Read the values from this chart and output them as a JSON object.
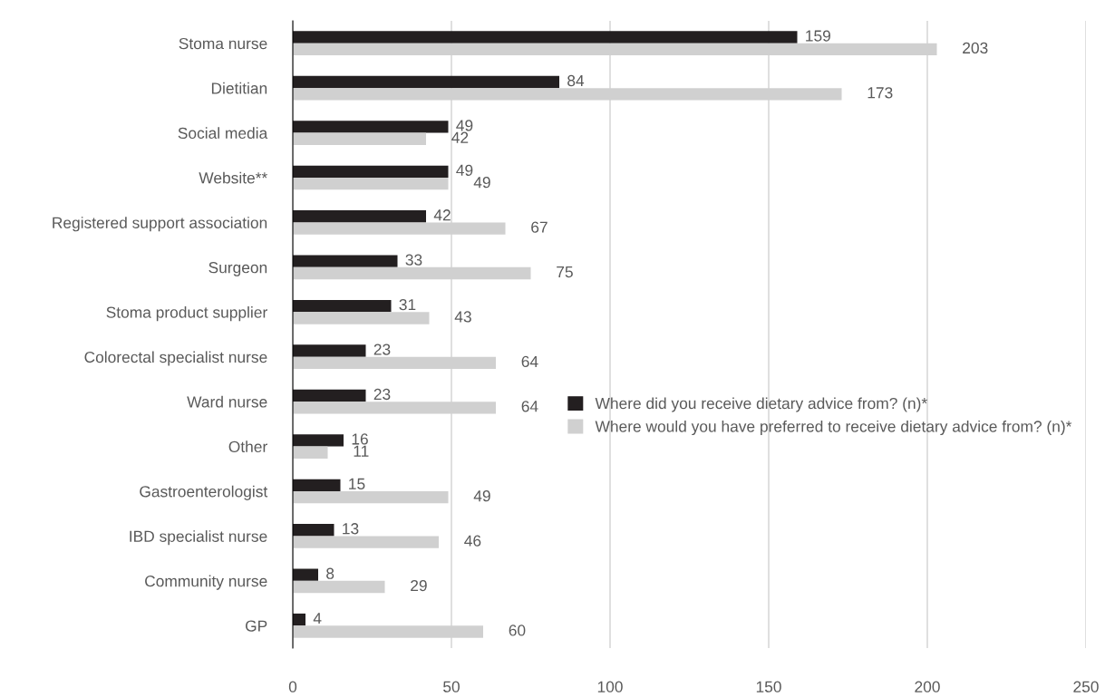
{
  "chart_data": {
    "type": "bar",
    "orientation": "horizontal",
    "categories": [
      "Stoma nurse",
      "Dietitian",
      "Social media",
      "Website**",
      "Registered support association",
      "Surgeon",
      "Stoma product supplier",
      "Colorectal specialist nurse",
      "Ward nurse",
      "Other",
      "Gastroenterologist",
      "IBD specialist nurse",
      "Community nurse",
      "GP"
    ],
    "series": [
      {
        "name": "Where did you receive dietary advice from? (n)*",
        "color": "#231f20",
        "values": [
          159,
          84,
          49,
          49,
          42,
          33,
          31,
          23,
          23,
          16,
          15,
          13,
          8,
          4
        ]
      },
      {
        "name": "Where would you have preferred to receive dietary advice from? (n)*",
        "color": "#d0d0d0",
        "values": [
          203,
          173,
          42,
          49,
          67,
          75,
          43,
          64,
          64,
          11,
          49,
          46,
          29,
          60
        ]
      }
    ],
    "xlim": [
      0,
      250
    ],
    "xticks": [
      0,
      50,
      100,
      150,
      200,
      250
    ],
    "grid": "x",
    "legend": "right",
    "data_labels": true
  }
}
